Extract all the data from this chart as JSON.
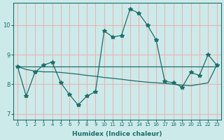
{
  "xlabel": "Humidex (Indice chaleur)",
  "background_color": "#cdeaea",
  "grid_color": "#e8b4b4",
  "line_color": "#1a6e6a",
  "xlim": [
    -0.5,
    23.5
  ],
  "ylim": [
    6.8,
    10.75
  ],
  "yticks": [
    7,
    8,
    9,
    10
  ],
  "xticks": [
    0,
    1,
    2,
    3,
    4,
    5,
    6,
    7,
    8,
    9,
    10,
    11,
    12,
    13,
    14,
    15,
    16,
    17,
    18,
    19,
    20,
    21,
    22,
    23
  ],
  "series1_y": [
    8.6,
    7.6,
    8.4,
    8.65,
    8.75,
    8.05,
    7.65,
    7.3,
    7.6,
    7.75,
    9.8,
    9.6,
    9.65,
    10.55,
    10.4,
    10.0,
    9.5,
    8.1,
    8.05,
    7.9,
    8.4,
    8.3,
    9.0,
    8.65
  ],
  "series2_y": [
    8.6,
    8.6,
    8.6,
    8.6,
    8.6,
    8.6,
    8.6,
    8.6,
    8.6,
    8.6,
    8.6,
    8.6,
    8.6,
    8.6,
    8.6,
    8.6,
    8.6,
    8.6,
    8.6,
    8.6,
    8.6,
    8.6,
    8.6,
    8.6
  ],
  "series3_y": [
    8.6,
    8.5,
    8.45,
    8.42,
    8.42,
    8.4,
    8.37,
    8.34,
    8.3,
    8.27,
    8.23,
    8.2,
    8.17,
    8.13,
    8.1,
    8.07,
    8.05,
    8.03,
    8.0,
    7.97,
    7.95,
    8.0,
    8.05,
    8.65
  ]
}
